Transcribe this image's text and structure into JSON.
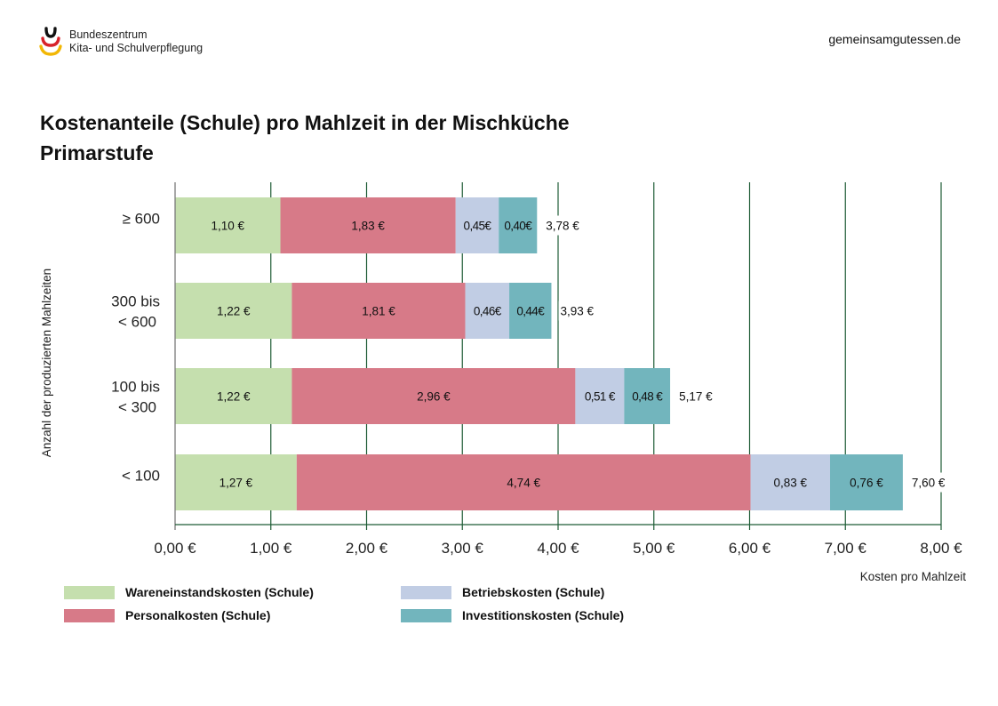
{
  "header": {
    "org_line1": "Bundeszentrum",
    "org_line2": "Kita- und Schulverpflegung",
    "website": "gemeinsamgutessen.de",
    "logo_icon": "german-flag-arcs-logo"
  },
  "title": {
    "line1": "Kostenanteile (Schule) pro Mahlzeit in der Mischküche",
    "line2": "Primarstufe"
  },
  "colors": {
    "wareneinstand": "#c5dfae",
    "personal": "#d77a88",
    "betrieb": "#c1cde4",
    "investition": "#72b5bd",
    "grid": "#1e5c36",
    "axis": "#7a7a7a"
  },
  "chart_data": {
    "type": "bar",
    "orientation": "horizontal",
    "stacked": true,
    "title": "Kostenanteile (Schule) pro Mahlzeit in der Mischküche Primarstufe",
    "xlabel": "Kosten pro Mahlzeit",
    "ylabel": "Anzahl der produzierten Mahlzeiten",
    "xlim": [
      0,
      8
    ],
    "x_ticks": [
      0,
      1,
      2,
      3,
      4,
      5,
      6,
      7,
      8
    ],
    "x_tick_labels": [
      "0,00 €",
      "1,00 €",
      "2,00 €",
      "3,00 €",
      "4,00 €",
      "5,00 €",
      "6,00 €",
      "7,00 €",
      "8,00 €"
    ],
    "grid": "vertical",
    "legend_position": "bottom-left",
    "categories": [
      {
        "line1": "≥ 600",
        "line2": ""
      },
      {
        "line1": "300 bis",
        "line2": "< 600"
      },
      {
        "line1": "100 bis",
        "line2": "< 300"
      },
      {
        "line1": "< 100",
        "line2": ""
      }
    ],
    "series": [
      {
        "name": "Wareneinstandskosten (Schule)",
        "color_key": "wareneinstand",
        "values": [
          1.1,
          1.22,
          1.22,
          1.27
        ],
        "labels": [
          "1,10 €",
          "1,22 €",
          "1,22 €",
          "1,27 €"
        ]
      },
      {
        "name": "Personalkosten (Schule)",
        "color_key": "personal",
        "values": [
          1.83,
          1.81,
          2.96,
          4.74
        ],
        "labels": [
          "1,83 €",
          "1,81 €",
          "2,96 €",
          "4,74 €"
        ]
      },
      {
        "name": "Betriebskosten (Schule)",
        "color_key": "betrieb",
        "values": [
          0.45,
          0.46,
          0.51,
          0.83
        ],
        "labels": [
          "0,45€",
          "0,46€",
          "0,51 €",
          "0,83 €"
        ]
      },
      {
        "name": "Investitionskosten (Schule)",
        "color_key": "investition",
        "values": [
          0.4,
          0.44,
          0.48,
          0.76
        ],
        "labels": [
          "0,40€",
          "0,44€",
          "0,48 €",
          "0,76 €"
        ]
      }
    ],
    "totals": [
      3.78,
      3.93,
      5.17,
      7.6
    ],
    "total_labels": [
      "3,78 €",
      "3,93 €",
      "5,17 €",
      "7,60 €"
    ]
  }
}
